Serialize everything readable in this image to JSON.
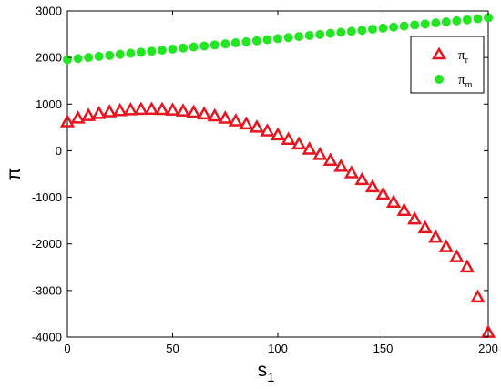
{
  "chart_data": {
    "type": "scatter",
    "xlabel": "s",
    "xlabel_sub": "1",
    "ylabel": "π",
    "xlim": [
      0,
      200
    ],
    "ylim": [
      -4000,
      3000
    ],
    "xticks": [
      0,
      50,
      100,
      150,
      200
    ],
    "yticks": [
      -4000,
      -3000,
      -2000,
      -1000,
      0,
      1000,
      2000,
      3000
    ],
    "grid": false,
    "legend_position": "top-right",
    "x": [
      0,
      5,
      10,
      15,
      20,
      25,
      30,
      35,
      40,
      45,
      50,
      55,
      60,
      65,
      70,
      75,
      80,
      85,
      90,
      95,
      100,
      105,
      110,
      115,
      120,
      125,
      130,
      135,
      140,
      145,
      150,
      155,
      160,
      165,
      170,
      175,
      180,
      185,
      190,
      195,
      200
    ],
    "series": [
      {
        "name": "π",
        "name_sub": "r",
        "marker": "triangle",
        "color": "#e8141e",
        "values": [
          620,
          700,
          755,
          800,
          835,
          860,
          878,
          888,
          890,
          885,
          872,
          852,
          825,
          790,
          748,
          698,
          640,
          575,
          505,
          425,
          340,
          245,
          145,
          35,
          -80,
          -205,
          -335,
          -475,
          -620,
          -775,
          -935,
          -1105,
          -1280,
          -1465,
          -1655,
          -1855,
          -2060,
          -2275,
          -2495,
          -3140,
          -3900
        ]
      },
      {
        "name": "π",
        "name_sub": "m",
        "marker": "circle",
        "color": "#22e622",
        "values": [
          1955,
          1978,
          2000,
          2023,
          2045,
          2068,
          2090,
          2113,
          2135,
          2158,
          2180,
          2203,
          2225,
          2248,
          2270,
          2293,
          2315,
          2338,
          2360,
          2383,
          2405,
          2428,
          2450,
          2473,
          2495,
          2518,
          2540,
          2563,
          2585,
          2608,
          2630,
          2653,
          2675,
          2698,
          2720,
          2743,
          2765,
          2788,
          2810,
          2833,
          2855
        ]
      }
    ]
  }
}
